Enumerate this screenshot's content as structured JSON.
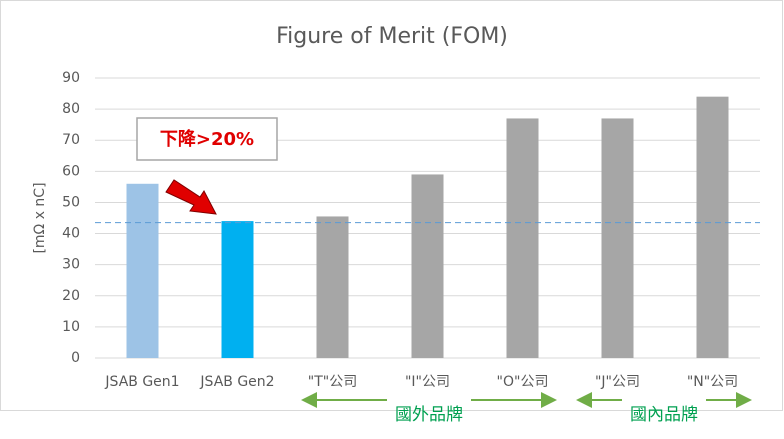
{
  "chart_data": {
    "type": "bar",
    "title": "Figure of Merit (FOM)",
    "y_label": "[mΩ x nC]",
    "categories": [
      "JSAB Gen1",
      "JSAB Gen2",
      "\"T\"公司",
      "\"I\"公司",
      "\"O\"公司",
      "\"J\"公司",
      "\"N\"公司"
    ],
    "values": [
      56,
      44,
      45.5,
      59,
      77,
      77,
      84
    ],
    "colors": [
      "#9dc3e6",
      "#00b0f0",
      "#a6a6a6",
      "#a6a6a6",
      "#a6a6a6",
      "#a6a6a6",
      "#a6a6a6"
    ],
    "ylim": [
      0,
      90
    ],
    "yticks": [
      0,
      10,
      20,
      30,
      40,
      50,
      60,
      70,
      80,
      90
    ],
    "grid": true,
    "reference_line": 43.5,
    "annotation": "下降>20%",
    "group_labels": [
      "國外品牌",
      "國內品牌"
    ]
  }
}
